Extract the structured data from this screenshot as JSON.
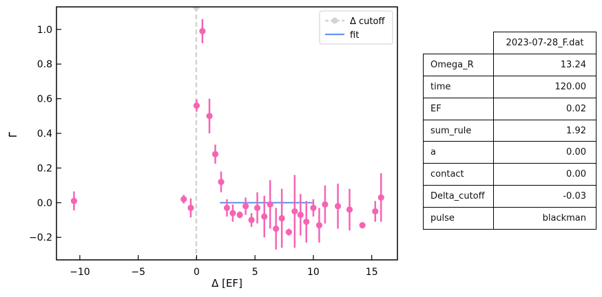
{
  "chart_data": {
    "type": "scatter",
    "xlabel": "Δ [EF]",
    "ylabel": "Γ̃",
    "xlim": [
      -12,
      17.2
    ],
    "ylim": [
      -0.33,
      1.13
    ],
    "xticks": [
      -10,
      -5,
      0,
      5,
      10,
      15
    ],
    "yticks": [
      -0.2,
      0.0,
      0.2,
      0.4,
      0.6,
      0.8,
      1.0
    ],
    "xtick_labels": [
      "−10",
      "−5",
      "0",
      "5",
      "10",
      "15"
    ],
    "ytick_labels": [
      "−0.2",
      "0.0",
      "0.2",
      "0.4",
      "0.6",
      "0.8",
      "1.0"
    ],
    "grid": false,
    "legend": {
      "placement": "top-right",
      "entries": [
        {
          "label": "Δ cutoff",
          "color": "#d3d3d3",
          "style": "dashed-marker"
        },
        {
          "label": "fit",
          "color": "#6495ed",
          "style": "line"
        }
      ]
    },
    "cutoff_x": -0.03,
    "fit": {
      "x": [
        2.0,
        10.0
      ],
      "y": [
        0.0,
        0.0
      ],
      "color": "#6495ed"
    },
    "points_color": "#f564b4",
    "points": [
      {
        "x": -10.5,
        "y": 0.01,
        "err": 0.055
      },
      {
        "x": -1.1,
        "y": 0.02,
        "err": 0.025
      },
      {
        "x": -0.5,
        "y": -0.03,
        "err": 0.055
      },
      {
        "x": 0.0,
        "y": 0.56,
        "err": 0.035
      },
      {
        "x": 0.5,
        "y": 0.99,
        "err": 0.07
      },
      {
        "x": 1.1,
        "y": 0.5,
        "err": 0.1
      },
      {
        "x": 1.6,
        "y": 0.28,
        "err": 0.055
      },
      {
        "x": 2.1,
        "y": 0.12,
        "err": 0.06
      },
      {
        "x": 2.6,
        "y": -0.03,
        "err": 0.05
      },
      {
        "x": 3.1,
        "y": -0.06,
        "err": 0.05
      },
      {
        "x": 3.7,
        "y": -0.07,
        "err": 0.02
      },
      {
        "x": 4.2,
        "y": -0.02,
        "err": 0.05
      },
      {
        "x": 4.7,
        "y": -0.1,
        "err": 0.04
      },
      {
        "x": 5.2,
        "y": -0.03,
        "err": 0.09
      },
      {
        "x": 5.8,
        "y": -0.08,
        "err": 0.12
      },
      {
        "x": 6.3,
        "y": -0.01,
        "err": 0.14
      },
      {
        "x": 6.8,
        "y": -0.15,
        "err": 0.12
      },
      {
        "x": 7.3,
        "y": -0.09,
        "err": 0.17
      },
      {
        "x": 7.9,
        "y": -0.17,
        "err": 0.02
      },
      {
        "x": 8.4,
        "y": -0.05,
        "err": 0.21
      },
      {
        "x": 8.9,
        "y": -0.07,
        "err": 0.12
      },
      {
        "x": 9.4,
        "y": -0.11,
        "err": 0.12
      },
      {
        "x": 10.0,
        "y": -0.03,
        "err": 0.05
      },
      {
        "x": 10.5,
        "y": -0.13,
        "err": 0.1
      },
      {
        "x": 11.0,
        "y": -0.01,
        "err": 0.11
      },
      {
        "x": 12.1,
        "y": -0.02,
        "err": 0.13
      },
      {
        "x": 13.1,
        "y": -0.04,
        "err": 0.12
      },
      {
        "x": 14.2,
        "y": -0.13,
        "err": 0.015
      },
      {
        "x": 15.3,
        "y": -0.05,
        "err": 0.06
      },
      {
        "x": 15.8,
        "y": 0.03,
        "err": 0.14
      }
    ]
  },
  "table": {
    "header": "2023-07-28_F.dat",
    "rows": [
      {
        "key": "Omega_R",
        "value": "13.24"
      },
      {
        "key": "time",
        "value": "120.00"
      },
      {
        "key": "EF",
        "value": "0.02"
      },
      {
        "key": "sum_rule",
        "value": "1.92"
      },
      {
        "key": "a",
        "value": "0.00"
      },
      {
        "key": "contact",
        "value": "0.00"
      },
      {
        "key": "Delta_cutoff",
        "value": "-0.03"
      },
      {
        "key": "pulse",
        "value": "blackman"
      }
    ]
  }
}
